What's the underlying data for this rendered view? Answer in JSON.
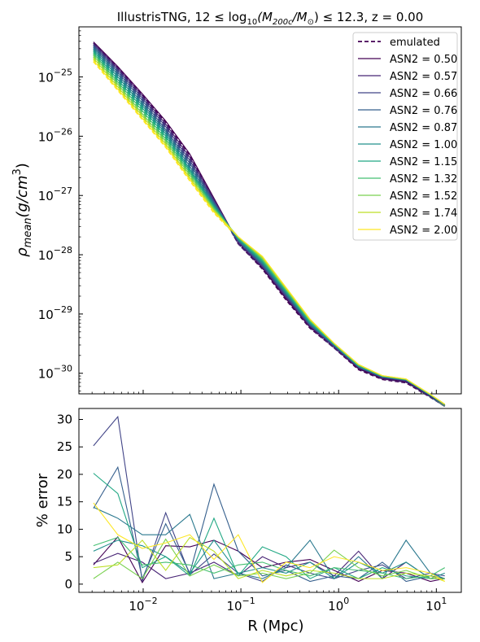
{
  "figure": {
    "title_main": "IllustrisTNG, 12 ≤ log",
    "title_sub": "10",
    "title_mid": "(M",
    "title_sub2": "200c",
    "title_mid2": "/M",
    "title_sun": "⊙",
    "title_end": ") ≤ 12.3, z = 0.00"
  },
  "chart_data": [
    {
      "type": "line",
      "panel": "top",
      "xscale": "log",
      "yscale": "log",
      "xlim": [
        0.0022,
        18
      ],
      "ylim": [
        4.5e-31,
        7e-25
      ],
      "ylabel_main": "ρ",
      "ylabel_sub": "mean",
      "ylabel_rest": "(g/cm",
      "ylabel_sup": "3",
      "ylabel_end": ")",
      "yticks": [
        {
          "value": 1e-25,
          "base": "10",
          "exp": "−25"
        },
        {
          "value": 1e-26,
          "base": "10",
          "exp": "−26"
        },
        {
          "value": 1e-27,
          "base": "10",
          "exp": "−27"
        },
        {
          "value": 1e-28,
          "base": "10",
          "exp": "−28"
        },
        {
          "value": 1e-29,
          "base": "10",
          "exp": "−29"
        },
        {
          "value": 1e-30,
          "base": "10",
          "exp": "−30"
        }
      ],
      "legend_position": "top-right",
      "legend": [
        {
          "label": "emulated",
          "style": "dashed",
          "color": "#440154"
        },
        {
          "label": "ASN2 = 0.50",
          "color": "#440154"
        },
        {
          "label": "ASN2 = 0.57",
          "color": "#482475"
        },
        {
          "label": "ASN2 = 0.66",
          "color": "#414487"
        },
        {
          "label": "ASN2 = 0.76",
          "color": "#355f8d"
        },
        {
          "label": "ASN2 = 0.87",
          "color": "#2a788e"
        },
        {
          "label": "ASN2 = 1.00",
          "color": "#21918c"
        },
        {
          "label": "ASN2 = 1.15",
          "color": "#22a884"
        },
        {
          "label": "ASN2 = 1.32",
          "color": "#44bf70"
        },
        {
          "label": "ASN2 = 1.52",
          "color": "#7ad151"
        },
        {
          "label": "ASN2 = 1.74",
          "color": "#bddf26"
        },
        {
          "label": "ASN2 = 2.00",
          "color": "#fde725"
        }
      ],
      "x": [
        0.0031,
        0.0055,
        0.0098,
        0.017,
        0.03,
        0.053,
        0.094,
        0.166,
        0.29,
        0.51,
        0.9,
        1.6,
        2.8,
        4.9,
        8.7,
        12.2
      ],
      "series": [
        {
          "name": "ASN2 = 0.50",
          "values": [
            3.9e-25,
            1.5e-25,
            5.2e-26,
            1.8e-26,
            5e-27,
            9e-28,
            1.6e-28,
            6e-29,
            1.8e-29,
            6e-30,
            2.8e-30,
            1.2e-30,
            8.2e-31,
            7.2e-31,
            4.1e-31,
            2.9e-31
          ]
        },
        {
          "name": "ASN2 = 0.57",
          "values": [
            3.7e-25,
            1.4e-25,
            4.8e-26,
            1.6e-26,
            4.4e-27,
            8.5e-28,
            1.6e-28,
            6.2e-29,
            1.9e-29,
            6.2e-30,
            2.8e-30,
            1.25e-30,
            8.4e-31,
            7.4e-31,
            4.2e-31,
            2.9e-31
          ]
        },
        {
          "name": "ASN2 = 0.66",
          "values": [
            3.5e-25,
            1.3e-25,
            4.4e-26,
            1.45e-26,
            3.9e-27,
            8e-28,
            1.7e-28,
            6.5e-29,
            2e-29,
            6.4e-30,
            2.9e-30,
            1.25e-30,
            8.5e-31,
            7.5e-31,
            4.2e-31,
            2.9e-31
          ]
        },
        {
          "name": "ASN2 = 0.76",
          "values": [
            3.3e-25,
            1.2e-25,
            4e-26,
            1.3e-26,
            3.5e-27,
            7.6e-28,
            1.7e-28,
            6.8e-29,
            2.1e-29,
            6.6e-30,
            2.9e-30,
            1.3e-30,
            8.6e-31,
            7.6e-31,
            4.2e-31,
            2.9e-31
          ]
        },
        {
          "name": "ASN2 = 0.87",
          "values": [
            3.1e-25,
            1.1e-25,
            3.6e-26,
            1.2e-26,
            3.1e-27,
            7.2e-28,
            1.8e-28,
            7.1e-29,
            2.2e-29,
            6.8e-30,
            3e-30,
            1.3e-30,
            8.7e-31,
            7.7e-31,
            4.3e-31,
            2.95e-31
          ]
        },
        {
          "name": "ASN2 = 1.00",
          "values": [
            2.9e-25,
            1e-25,
            3.3e-26,
            1.1e-26,
            2.8e-27,
            6.8e-28,
            1.8e-28,
            7.4e-29,
            2.3e-29,
            7e-30,
            3e-30,
            1.3e-30,
            8.8e-31,
            7.8e-31,
            4.3e-31,
            2.95e-31
          ]
        },
        {
          "name": "ASN2 = 1.15",
          "values": [
            2.7e-25,
            9e-26,
            3e-26,
            1e-26,
            2.6e-27,
            6.5e-28,
            1.9e-28,
            7.8e-29,
            2.4e-29,
            7.2e-30,
            3.1e-30,
            1.35e-30,
            8.9e-31,
            7.8e-31,
            4.3e-31,
            3e-31
          ]
        },
        {
          "name": "ASN2 = 1.32",
          "values": [
            2.5e-25,
            8.2e-26,
            2.7e-26,
            9e-27,
            2.4e-27,
            6.2e-28,
            1.9e-28,
            8.2e-29,
            2.5e-29,
            7.5e-30,
            3.1e-30,
            1.35e-30,
            9e-31,
            7.9e-31,
            4.4e-31,
            3e-31
          ]
        },
        {
          "name": "ASN2 = 1.52",
          "values": [
            2.3e-25,
            7.5e-26,
            2.4e-26,
            8.2e-27,
            2.2e-27,
            5.9e-28,
            2e-28,
            8.6e-29,
            2.6e-29,
            7.8e-30,
            3.2e-30,
            1.4e-30,
            9e-31,
            7.9e-31,
            4.4e-31,
            3e-31
          ]
        },
        {
          "name": "ASN2 = 1.74",
          "values": [
            2.1e-25,
            6.8e-26,
            2.2e-26,
            7.4e-27,
            2e-27,
            5.6e-28,
            2e-28,
            9e-29,
            2.7e-29,
            8e-30,
            3.2e-30,
            1.4e-30,
            9.1e-31,
            8e-31,
            4.4e-31,
            3e-31
          ]
        },
        {
          "name": "ASN2 = 2.00",
          "values": [
            1.9e-25,
            6.2e-26,
            2e-26,
            6.8e-27,
            1.85e-27,
            5.3e-28,
            2e-28,
            9.4e-29,
            2.8e-29,
            8.2e-30,
            3.2e-30,
            1.4e-30,
            9.1e-31,
            8e-31,
            4.4e-31,
            3e-31
          ]
        }
      ],
      "emulated_offset": 0.96
    },
    {
      "type": "line",
      "panel": "bottom",
      "xscale": "log",
      "xlim": [
        0.0022,
        18
      ],
      "ylim": [
        -1.5,
        32
      ],
      "ylabel": "% error",
      "xlabel": "R (Mpc)",
      "yticks": [
        0,
        5,
        10,
        15,
        20,
        25,
        30
      ],
      "xticks": [
        {
          "value": 0.01,
          "base": "10",
          "exp": "−2"
        },
        {
          "value": 0.1,
          "base": "10",
          "exp": "−1"
        },
        {
          "value": 1,
          "base": "10",
          "exp": "0"
        },
        {
          "value": 10,
          "base": "10",
          "exp": "1"
        }
      ],
      "x": [
        0.0031,
        0.0055,
        0.0098,
        0.017,
        0.03,
        0.053,
        0.094,
        0.166,
        0.29,
        0.51,
        0.9,
        1.6,
        2.8,
        4.9,
        8.7,
        12.2
      ],
      "series": [
        {
          "name": "ASN2 = 0.50",
          "values": [
            3.5,
            8.6,
            0.3,
            7.0,
            6.8,
            8.0,
            6.0,
            3.0,
            4.0,
            4.5,
            2.5,
            0.5,
            2.5,
            2.0,
            0.5,
            1.0
          ]
        },
        {
          "name": "ASN2 = 0.57",
          "values": [
            3.8,
            5.6,
            4.0,
            1.0,
            2.0,
            4.0,
            1.5,
            5.0,
            3.0,
            4.0,
            1.5,
            6.0,
            1.0,
            4.0,
            1.0,
            1.0
          ]
        },
        {
          "name": "ASN2 = 0.66",
          "values": [
            25.2,
            30.5,
            0.5,
            13.0,
            1.7,
            5.5,
            2.0,
            0.5,
            3.5,
            2.0,
            1.0,
            2.5,
            3.5,
            1.0,
            2.0,
            1.5
          ]
        },
        {
          "name": "ASN2 = 0.76",
          "values": [
            13.8,
            21.3,
            1.0,
            11.0,
            2.0,
            18.2,
            6.0,
            1.5,
            2.5,
            0.5,
            1.5,
            1.0,
            4.0,
            0.5,
            1.5,
            1.0
          ]
        },
        {
          "name": "ASN2 = 0.87",
          "values": [
            14.0,
            12.0,
            9.0,
            9.0,
            12.7,
            1.0,
            2.0,
            1.0,
            3.0,
            8.0,
            1.0,
            5.0,
            1.0,
            8.0,
            2.0,
            1.0
          ]
        },
        {
          "name": "ASN2 = 1.00",
          "values": [
            6.0,
            8.0,
            7.0,
            5.0,
            2.0,
            8.0,
            2.0,
            3.0,
            2.0,
            4.0,
            1.0,
            4.0,
            2.0,
            4.0,
            1.0,
            2.0
          ]
        },
        {
          "name": "ASN2 = 1.15",
          "values": [
            20.2,
            16.5,
            3.0,
            5.0,
            1.5,
            12.0,
            1.5,
            6.8,
            5.0,
            1.0,
            3.0,
            1.0,
            3.0,
            1.5,
            1.0,
            1.0
          ]
        },
        {
          "name": "ASN2 = 1.32",
          "values": [
            7.0,
            8.5,
            3.5,
            4.0,
            3.5,
            2.0,
            3.5,
            4.0,
            2.5,
            1.5,
            3.0,
            2.5,
            2.0,
            1.0,
            1.5,
            3.0
          ]
        },
        {
          "name": "ASN2 = 1.52",
          "values": [
            1.0,
            4.0,
            1.0,
            8.2,
            1.5,
            3.5,
            1.5,
            2.0,
            1.0,
            2.0,
            6.2,
            3.0,
            1.5,
            2.5,
            1.0,
            1.0
          ]
        },
        {
          "name": "ASN2 = 1.74",
          "values": [
            3.0,
            3.5,
            8.0,
            2.5,
            8.5,
            6.0,
            1.0,
            2.5,
            1.5,
            2.5,
            2.0,
            1.0,
            1.0,
            2.0,
            1.5,
            0.5
          ]
        },
        {
          "name": "ASN2 = 2.00",
          "values": [
            14.8,
            9.0,
            6.5,
            7.5,
            9.0,
            4.5,
            9.0,
            0.3,
            4.0,
            3.0,
            5.0,
            4.0,
            2.5,
            3.0,
            2.0,
            0.5
          ]
        }
      ]
    }
  ]
}
